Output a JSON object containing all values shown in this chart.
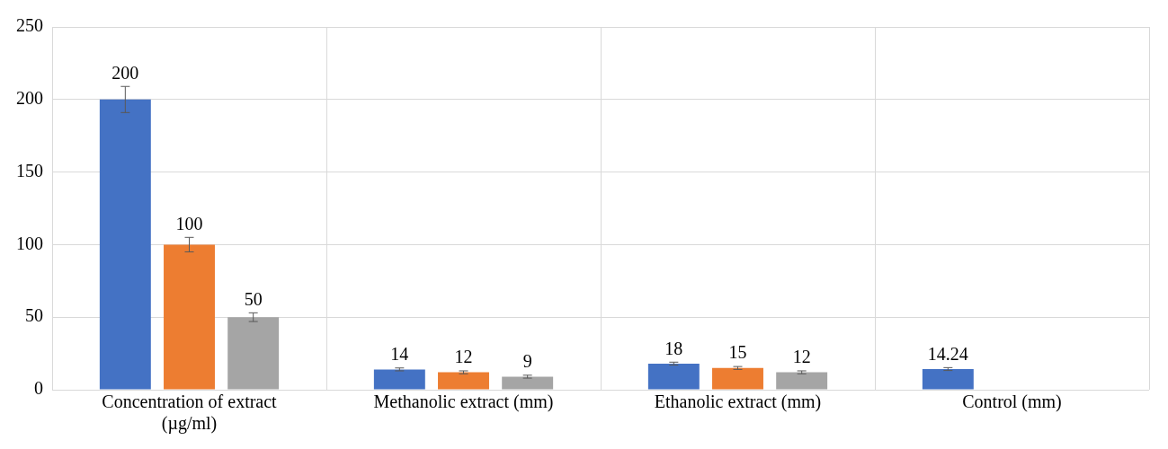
{
  "chart_data": {
    "type": "bar",
    "categories": [
      "Concentration of extract (µg/ml)",
      "Methanolic extract (mm)",
      "Ethanolic extract (mm)",
      "Control (mm)"
    ],
    "series": [
      {
        "color": "#4472c4",
        "values": [
          200,
          14,
          18,
          14.24
        ],
        "errors": [
          9,
          1,
          1,
          1
        ]
      },
      {
        "color": "#ed7d31",
        "values": [
          100,
          12,
          15,
          null
        ],
        "errors": [
          5,
          1,
          1,
          null
        ]
      },
      {
        "color": "#a5a5a5",
        "values": [
          50,
          9,
          12,
          null
        ],
        "errors": [
          3,
          1,
          1,
          null
        ]
      }
    ],
    "ylim": [
      0,
      250
    ],
    "yticks": [
      0,
      50,
      100,
      150,
      200,
      250
    ],
    "grid": true,
    "legend": false,
    "data_labels": true
  }
}
